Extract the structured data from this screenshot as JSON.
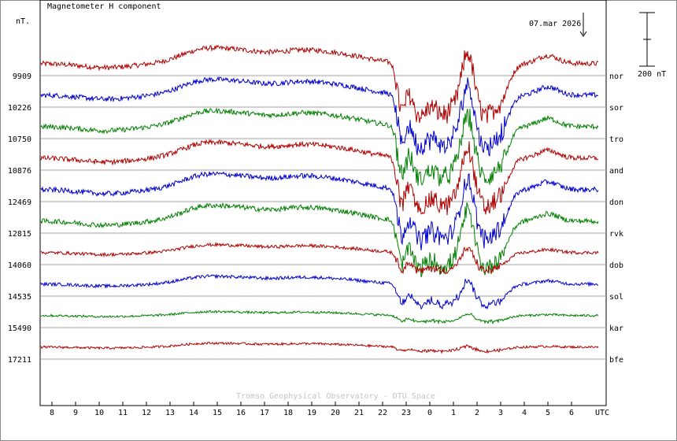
{
  "chart_data": {
    "type": "line",
    "title": "Magnetometer H component",
    "ylabel": "nT.",
    "date_label": "07.mar 2026",
    "scale_label": "200 nT",
    "scale_nT": 200,
    "credit": "Tromso Geophysical Observatory - DTU Space",
    "xlabel": "UTC",
    "x_ticks": [
      "8",
      "9",
      "10",
      "11",
      "12",
      "13",
      "14",
      "15",
      "16",
      "17",
      "18",
      "19",
      "20",
      "21",
      "22",
      "23",
      "0",
      "1",
      "2",
      "3",
      "4",
      "5",
      "6"
    ],
    "colors": {
      "red": "#b00000",
      "blue": "#0000cc",
      "green": "#008000",
      "grid": "#a0a0a0"
    },
    "series": [
      {
        "station": "nor",
        "baseline": "9909",
        "color": "red"
      },
      {
        "station": "sor",
        "baseline": "10226",
        "color": "blue"
      },
      {
        "station": "tro",
        "baseline": "10750",
        "color": "green"
      },
      {
        "station": "and",
        "baseline": "10876",
        "color": "red"
      },
      {
        "station": "don",
        "baseline": "12469",
        "color": "blue"
      },
      {
        "station": "rvk",
        "baseline": "12815",
        "color": "green"
      },
      {
        "station": "dob",
        "baseline": "14060",
        "color": "red"
      },
      {
        "station": "sol",
        "baseline": "14535",
        "color": "blue"
      },
      {
        "station": "kar",
        "baseline": "15490",
        "color": "green"
      },
      {
        "station": "bfe",
        "baseline": "17211",
        "color": "red"
      }
    ]
  }
}
